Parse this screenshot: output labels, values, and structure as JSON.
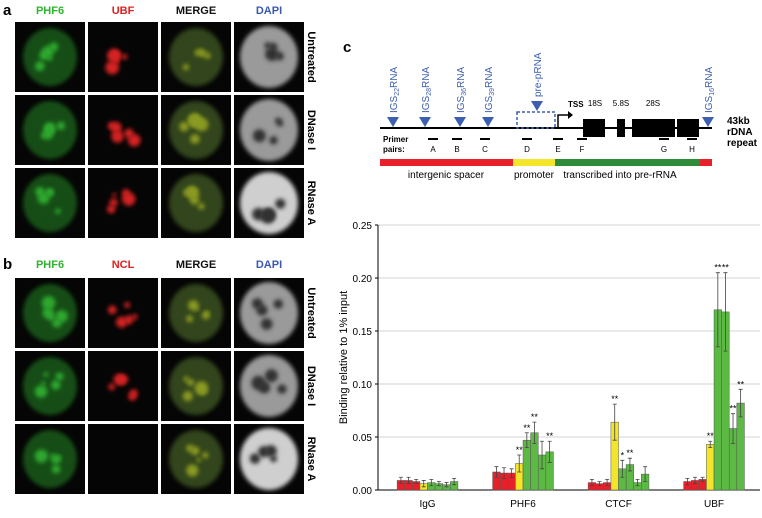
{
  "panel_a": {
    "label": "a",
    "columns": [
      "PHF6",
      "UBF",
      "MERGE",
      "DAPI"
    ],
    "rows": [
      "Untreated",
      "DNase I",
      "RNase A"
    ]
  },
  "panel_b": {
    "label": "b",
    "columns": [
      "PHF6",
      "NCL",
      "MERGE",
      "DAPI"
    ],
    "rows": [
      "Untreated",
      "DNase I",
      "RNase A"
    ]
  },
  "diagram": {
    "label": "c",
    "rna_labels": [
      {
        "prefix": "IGS",
        "sub": "22",
        "suffix": "RNA"
      },
      {
        "prefix": "IGS",
        "sub": "28",
        "suffix": "RNA"
      },
      {
        "prefix": "IGS",
        "sub": "36",
        "suffix": "RNA"
      },
      {
        "prefix": "IGS",
        "sub": "39",
        "suffix": "RNA"
      },
      {
        "prefix": "pre-pRNA",
        "sub": "",
        "suffix": ""
      },
      {
        "prefix": "IGS",
        "sub": "16",
        "suffix": "RNA"
      }
    ],
    "tss": "TSS",
    "exons": [
      "18S",
      "5.8S",
      "28S"
    ],
    "repeat": [
      "43kb",
      "rDNA",
      "repeat"
    ],
    "primer_title": [
      "Primer",
      "pairs:"
    ],
    "primers": [
      "A",
      "B",
      "C",
      "D",
      "E",
      "F",
      "G",
      "H"
    ],
    "regions": [
      "intergenic spacer",
      "promoter",
      "transcribed into pre-rRNA"
    ]
  },
  "chart_data": {
    "type": "bar",
    "y_label": "Binding relative to 1% input",
    "categories": [
      "IgG",
      "PHF6",
      "CTCF",
      "UBF"
    ],
    "series": [
      {
        "color": "#e8202a",
        "values": [
          0.009,
          0.017,
          0.007,
          0.008
        ],
        "errors": [
          0.003,
          0.005,
          0.003,
          0.003
        ],
        "marks": [
          null,
          null,
          null,
          null
        ]
      },
      {
        "color": "#e8202a",
        "values": [
          0.009,
          0.016,
          0.006,
          0.009
        ],
        "errors": [
          0.003,
          0.005,
          0.002,
          0.003
        ],
        "marks": [
          null,
          null,
          null,
          null
        ]
      },
      {
        "color": "#e8202a",
        "values": [
          0.008,
          0.016,
          0.007,
          0.01
        ],
        "errors": [
          0.002,
          0.004,
          0.003,
          0.002
        ],
        "marks": [
          null,
          null,
          null,
          null
        ]
      },
      {
        "color": "#f3e52a",
        "values": [
          0.006,
          0.025,
          0.064,
          0.043
        ],
        "errors": [
          0.003,
          0.008,
          0.017,
          0.003
        ],
        "marks": [
          null,
          "**",
          "**",
          "**"
        ]
      },
      {
        "color": "#5cb944",
        "values": [
          0.007,
          0.047,
          0.02,
          0.17
        ],
        "errors": [
          0.003,
          0.007,
          0.008,
          0.035
        ],
        "marks": [
          null,
          "**",
          "*",
          "**"
        ]
      },
      {
        "color": "#5cb944",
        "values": [
          0.006,
          0.054,
          0.024,
          0.168
        ],
        "errors": [
          0.002,
          0.01,
          0.006,
          0.037
        ],
        "marks": [
          null,
          "**",
          "**",
          "**"
        ]
      },
      {
        "color": "#5cb944",
        "values": [
          0.005,
          0.033,
          0.007,
          0.058
        ],
        "errors": [
          0.002,
          0.013,
          0.003,
          0.014
        ],
        "marks": [
          null,
          null,
          null,
          "**"
        ]
      },
      {
        "color": "#5cb944",
        "values": [
          0.008,
          0.036,
          0.015,
          0.082
        ],
        "errors": [
          0.003,
          0.01,
          0.007,
          0.013
        ],
        "marks": [
          null,
          "**",
          null,
          "**"
        ]
      }
    ],
    "ylim": [
      0,
      0.25
    ],
    "yticks": [
      {
        "value": 0,
        "label": "0.00"
      },
      {
        "value": 0.05,
        "label": "0.05"
      },
      {
        "value": 0.1,
        "label": "0.10"
      },
      {
        "value": 0.15,
        "label": "0.15"
      },
      {
        "value": 0.2,
        "label": "0.20"
      },
      {
        "value": 0.25,
        "label": "0.25"
      }
    ],
    "grid": true
  }
}
